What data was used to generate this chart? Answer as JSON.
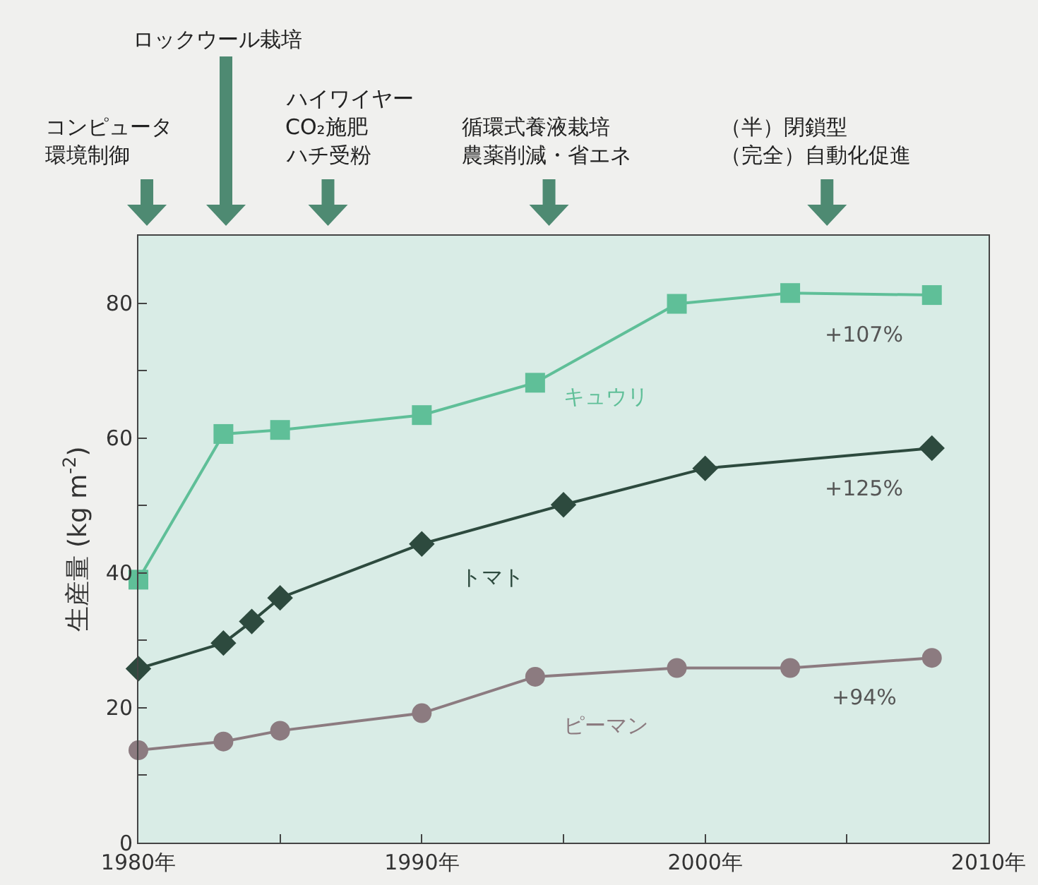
{
  "chart_data": {
    "type": "line",
    "ylabel": "生産量 (kg m$^{-2}$)",
    "xlim": [
      1980,
      2010
    ],
    "xticks": [
      {
        "value": 1980,
        "label": "1980年"
      },
      {
        "value": 1985,
        "label": null
      },
      {
        "value": 1990,
        "label": "1990年"
      },
      {
        "value": 1995,
        "label": null
      },
      {
        "value": 2000,
        "label": "2000年"
      },
      {
        "value": 2005,
        "label": null
      },
      {
        "value": 2010,
        "label": "2010年"
      }
    ],
    "ylim": [
      0,
      90
    ],
    "yticks": [
      0,
      {
        "value": 10,
        "label": null
      },
      20,
      {
        "value": 30,
        "label": null
      },
      40,
      {
        "value": 50,
        "label": null
      },
      60,
      {
        "value": 70,
        "label": null
      },
      80
    ],
    "grid": false,
    "legend": false,
    "line_style": "solid",
    "series": [
      {
        "name": "キュウリ",
        "color": "#5fbf98",
        "marker": "square",
        "x": [
          1980,
          1983,
          1985,
          1990,
          1994,
          1999,
          2003,
          2008
        ],
        "values": [
          39,
          60.6,
          61.2,
          63.4,
          68.2,
          79.9,
          81.5,
          81.2
        ]
      },
      {
        "name": "トマト",
        "color": "#2d4a3e",
        "marker": "diamond",
        "x": [
          1980,
          1983,
          1984,
          1985,
          1990,
          1995,
          2000,
          2008
        ],
        "values": [
          25.8,
          29.6,
          32.8,
          36.3,
          44.3,
          50.1,
          55.5,
          58.5
        ]
      },
      {
        "name": "ピーマン",
        "color": "#8c7b80",
        "marker": "circle",
        "x": [
          1980,
          1983,
          1985,
          1990,
          1994,
          1999,
          2003,
          2008
        ],
        "values": [
          13.7,
          15.0,
          16.6,
          19.2,
          24.6,
          25.9,
          25.9,
          27.4
        ]
      }
    ],
    "annotations": [
      "+107%",
      "+125%",
      "+94%",
      "コンピュータ",
      "環境制御",
      "ロックウール栽培",
      "ハイワイヤー",
      "CO₂施肥",
      "ハチ受粉",
      "循環式養液栽培",
      "農薬削減・省エネ",
      "（半）閉鎖型",
      "（完全）自動化促進"
    ]
  }
}
